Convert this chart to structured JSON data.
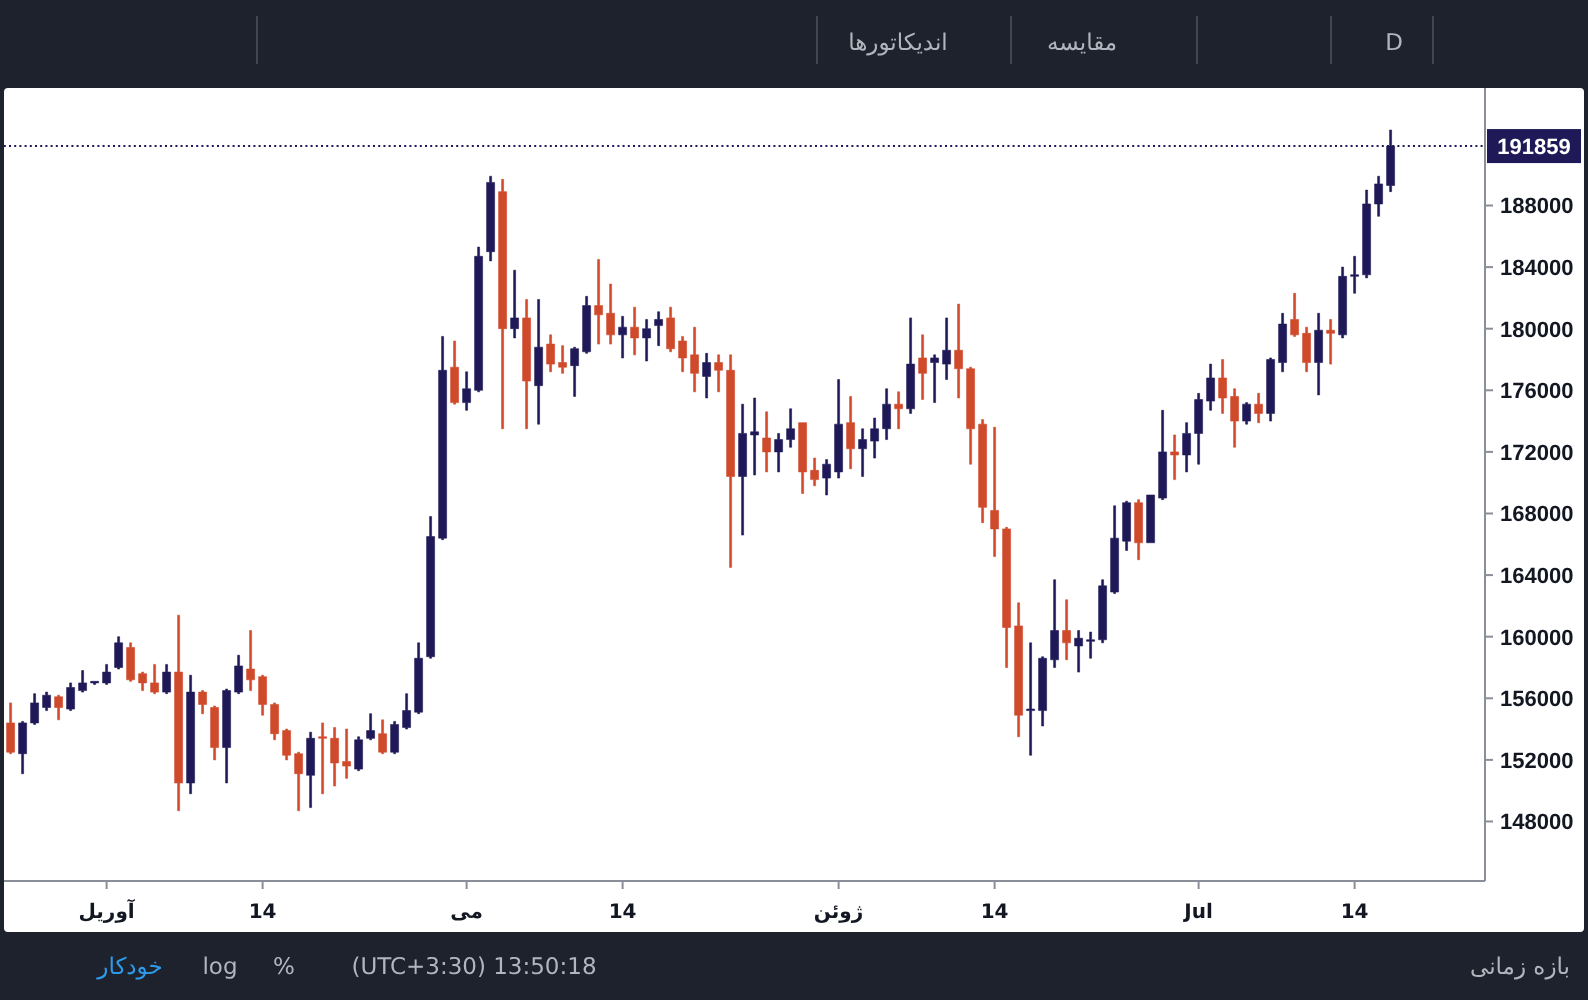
{
  "chart_data": {
    "type": "candlestick",
    "x": [
      "--03-24",
      "--03-25",
      "--03-26",
      "--03-27",
      "--03-28",
      "--03-29",
      "--03-30",
      "--03-31",
      "--04-01",
      "--04-02",
      "--04-03",
      "--04-04",
      "--04-05",
      "--04-06",
      "--04-07",
      "--04-08",
      "--04-09",
      "--04-10",
      "--04-11",
      "--04-12",
      "--04-13",
      "--04-14",
      "--04-15",
      "--04-16",
      "--04-17",
      "--04-18",
      "--04-19",
      "--04-20",
      "--04-21",
      "--04-22",
      "--04-23",
      "--04-24",
      "--04-25",
      "--04-26",
      "--04-27",
      "--04-28",
      "--04-29",
      "--04-30",
      "--05-01",
      "--05-02",
      "--05-03",
      "--05-04",
      "--05-05",
      "--05-06",
      "--05-07",
      "--05-08",
      "--05-09",
      "--05-10",
      "--05-11",
      "--05-12",
      "--05-13",
      "--05-14",
      "--05-15",
      "--05-16",
      "--05-17",
      "--05-18",
      "--05-19",
      "--05-20",
      "--05-21",
      "--05-22",
      "--05-23",
      "--05-24",
      "--05-25",
      "--05-26",
      "--05-27",
      "--05-28",
      "--05-29",
      "--05-30",
      "--05-31",
      "--06-01",
      "--06-02",
      "--06-03",
      "--06-04",
      "--06-05",
      "--06-06",
      "--06-07",
      "--06-08",
      "--06-09",
      "--06-10",
      "--06-11",
      "--06-12",
      "--06-13",
      "--06-14",
      "--06-15",
      "--06-16",
      "--06-17",
      "--06-18",
      "--06-19",
      "--06-20",
      "--06-21",
      "--06-22",
      "--06-23",
      "--06-24",
      "--06-25",
      "--06-26",
      "--06-27",
      "--06-28",
      "--06-29",
      "--06-30",
      "--07-01",
      "--07-02",
      "--07-03",
      "--07-04",
      "--07-05",
      "--07-06",
      "--07-07",
      "--07-08",
      "--07-09",
      "--07-10",
      "--07-11",
      "--07-12",
      "--07-13",
      "--07-14",
      "--07-15",
      "--07-16",
      "--07-17"
    ],
    "ohlc": [
      [
        154400,
        155700,
        152400,
        152500
      ],
      [
        152400,
        154500,
        151100,
        154400
      ],
      [
        154400,
        156300,
        154300,
        155700
      ],
      [
        155400,
        156400,
        155200,
        156200
      ],
      [
        156100,
        156200,
        154600,
        155400
      ],
      [
        155300,
        157000,
        155200,
        156700
      ],
      [
        156500,
        157800,
        156400,
        157000
      ],
      [
        157000,
        157100,
        156900,
        157100
      ],
      [
        157000,
        158200,
        156900,
        157700
      ],
      [
        158000,
        160000,
        157900,
        159600
      ],
      [
        159300,
        159600,
        157100,
        157200
      ],
      [
        157600,
        157700,
        156500,
        157000
      ],
      [
        157000,
        158200,
        156300,
        156400
      ],
      [
        156400,
        158200,
        156300,
        157700
      ],
      [
        157700,
        161400,
        148700,
        150500
      ],
      [
        150500,
        157500,
        149800,
        156400
      ],
      [
        156400,
        156500,
        155000,
        155600
      ],
      [
        155400,
        155500,
        152000,
        152800
      ],
      [
        152800,
        156600,
        150500,
        156500
      ],
      [
        156400,
        158800,
        156300,
        158100
      ],
      [
        157900,
        160400,
        156500,
        157200
      ],
      [
        157400,
        157500,
        154900,
        155600
      ],
      [
        155600,
        155700,
        153300,
        153700
      ],
      [
        153900,
        154000,
        152000,
        152300
      ],
      [
        152400,
        152500,
        148700,
        151100
      ],
      [
        151000,
        153800,
        148900,
        153400
      ],
      [
        153500,
        154400,
        149800,
        153400
      ],
      [
        153400,
        154100,
        150300,
        151800
      ],
      [
        151900,
        154000,
        150800,
        151600
      ],
      [
        151400,
        153500,
        151300,
        153300
      ],
      [
        153400,
        155000,
        153300,
        153900
      ],
      [
        153700,
        154600,
        152400,
        152500
      ],
      [
        152500,
        154500,
        152400,
        154300
      ],
      [
        154100,
        156300,
        154000,
        155200
      ],
      [
        155100,
        159600,
        155000,
        158600
      ],
      [
        158700,
        167800,
        158600,
        166500
      ],
      [
        166400,
        179500,
        166300,
        177300
      ],
      [
        177500,
        179200,
        175100,
        175200
      ],
      [
        175200,
        177200,
        174700,
        176100
      ],
      [
        176000,
        185300,
        175900,
        184700
      ],
      [
        185000,
        189900,
        184400,
        189500
      ],
      [
        188900,
        189700,
        173500,
        180000
      ],
      [
        180000,
        183800,
        179400,
        180700
      ],
      [
        180700,
        181900,
        173500,
        176600
      ],
      [
        176300,
        181900,
        173800,
        178800
      ],
      [
        179000,
        179600,
        177200,
        177700
      ],
      [
        177800,
        178900,
        177100,
        177500
      ],
      [
        177600,
        178800,
        175600,
        178700
      ],
      [
        178500,
        182100,
        178400,
        181500
      ],
      [
        181500,
        184500,
        179000,
        180900
      ],
      [
        181000,
        182900,
        179000,
        179600
      ],
      [
        179600,
        180800,
        178100,
        180100
      ],
      [
        180100,
        181400,
        178300,
        179400
      ],
      [
        179400,
        180600,
        177900,
        180000
      ],
      [
        180200,
        181100,
        178900,
        180600
      ],
      [
        180700,
        181400,
        178500,
        178700
      ],
      [
        179200,
        179500,
        177200,
        178100
      ],
      [
        178300,
        180100,
        175900,
        177100
      ],
      [
        176900,
        178400,
        175500,
        177800
      ],
      [
        177800,
        178300,
        175900,
        177300
      ],
      [
        177300,
        178300,
        164500,
        170400
      ],
      [
        170400,
        175100,
        166600,
        173200
      ],
      [
        173100,
        175500,
        170500,
        173300
      ],
      [
        172900,
        174600,
        170700,
        172000
      ],
      [
        172000,
        173200,
        170700,
        172800
      ],
      [
        172800,
        174800,
        172300,
        173500
      ],
      [
        173900,
        173900,
        169300,
        170700
      ],
      [
        170800,
        171600,
        169800,
        170200
      ],
      [
        170300,
        171500,
        169200,
        171200
      ],
      [
        170700,
        176700,
        170300,
        173800
      ],
      [
        173900,
        175600,
        170900,
        172200
      ],
      [
        172200,
        173500,
        170400,
        172800
      ],
      [
        172700,
        174200,
        171600,
        173500
      ],
      [
        173500,
        176100,
        172800,
        175100
      ],
      [
        175100,
        175900,
        173500,
        174800
      ],
      [
        174800,
        180700,
        174500,
        177700
      ],
      [
        178100,
        179600,
        175400,
        177100
      ],
      [
        177800,
        178300,
        175200,
        178100
      ],
      [
        177700,
        180700,
        176700,
        178600
      ],
      [
        178600,
        181600,
        175500,
        177400
      ],
      [
        177400,
        177500,
        171200,
        173500
      ],
      [
        173800,
        174100,
        167400,
        168400
      ],
      [
        168200,
        173600,
        165200,
        167000
      ],
      [
        167000,
        167100,
        158000,
        160600
      ],
      [
        160700,
        162200,
        153500,
        154900
      ],
      [
        155200,
        159600,
        152300,
        155300
      ],
      [
        155200,
        158700,
        154200,
        158600
      ],
      [
        158500,
        163700,
        158000,
        160400
      ],
      [
        160400,
        162400,
        158500,
        159600
      ],
      [
        159400,
        160400,
        157700,
        159900
      ],
      [
        159700,
        160300,
        158600,
        159800
      ],
      [
        159800,
        163700,
        159600,
        163300
      ],
      [
        162900,
        168500,
        162800,
        166400
      ],
      [
        166200,
        168800,
        165600,
        168700
      ],
      [
        168700,
        168900,
        165000,
        166100
      ],
      [
        166100,
        169200,
        166100,
        169200
      ],
      [
        169000,
        174700,
        168900,
        172000
      ],
      [
        172000,
        173100,
        170200,
        171800
      ],
      [
        171800,
        173900,
        170700,
        173200
      ],
      [
        173200,
        175800,
        171200,
        175400
      ],
      [
        175300,
        177700,
        174700,
        176800
      ],
      [
        176800,
        178000,
        174500,
        175500
      ],
      [
        175600,
        176100,
        172300,
        174000
      ],
      [
        174000,
        175200,
        173800,
        175100
      ],
      [
        175100,
        175800,
        173900,
        174500
      ],
      [
        174500,
        178100,
        174000,
        178000
      ],
      [
        177800,
        181000,
        177200,
        180300
      ],
      [
        180600,
        182300,
        179500,
        179600
      ],
      [
        179700,
        180100,
        177200,
        177800
      ],
      [
        177800,
        181000,
        175700,
        179900
      ],
      [
        179900,
        180600,
        177700,
        179700
      ],
      [
        179600,
        184000,
        179400,
        183400
      ],
      [
        183400,
        184700,
        182300,
        183500
      ],
      [
        183500,
        189000,
        183300,
        188100
      ],
      [
        188100,
        189900,
        187300,
        189400
      ],
      [
        189300,
        192900,
        188900,
        191859
      ]
    ],
    "colors": [
      "#cf4a2b",
      "#1f1a57",
      "#1f1a57",
      "#1f1a57",
      "#cf4a2b",
      "#1f1a57",
      "#1f1a57",
      "#1f1a57",
      "#1f1a57",
      "#1f1a57",
      "#cf4a2b",
      "#cf4a2b",
      "#cf4a2b",
      "#1f1a57",
      "#cf4a2b",
      "#1f1a57",
      "#cf4a2b",
      "#cf4a2b",
      "#1f1a57",
      "#1f1a57",
      "#cf4a2b",
      "#cf4a2b",
      "#cf4a2b",
      "#cf4a2b",
      "#cf4a2b",
      "#1f1a57",
      "#cf4a2b",
      "#cf4a2b",
      "#cf4a2b",
      "#1f1a57",
      "#1f1a57",
      "#cf4a2b",
      "#1f1a57",
      "#1f1a57",
      "#1f1a57",
      "#1f1a57",
      "#1f1a57",
      "#cf4a2b",
      "#1f1a57",
      "#1f1a57",
      "#1f1a57",
      "#cf4a2b",
      "#1f1a57",
      "#cf4a2b",
      "#1f1a57",
      "#cf4a2b",
      "#cf4a2b",
      "#1f1a57",
      "#1f1a57",
      "#cf4a2b",
      "#cf4a2b",
      "#1f1a57",
      "#cf4a2b",
      "#1f1a57",
      "#1f1a57",
      "#cf4a2b",
      "#cf4a2b",
      "#cf4a2b",
      "#1f1a57",
      "#cf4a2b",
      "#cf4a2b",
      "#1f1a57",
      "#1f1a57",
      "#cf4a2b",
      "#1f1a57",
      "#1f1a57",
      "#cf4a2b",
      "#cf4a2b",
      "#1f1a57",
      "#1f1a57",
      "#cf4a2b",
      "#1f1a57",
      "#1f1a57",
      "#1f1a57",
      "#cf4a2b",
      "#1f1a57",
      "#cf4a2b",
      "#1f1a57",
      "#1f1a57",
      "#cf4a2b",
      "#cf4a2b",
      "#cf4a2b",
      "#cf4a2b",
      "#cf4a2b",
      "#cf4a2b",
      "#1f1a57",
      "#1f1a57",
      "#1f1a57",
      "#cf4a2b",
      "#1f1a57",
      "#1f1a57",
      "#1f1a57",
      "#1f1a57",
      "#1f1a57",
      "#cf4a2b",
      "#1f1a57",
      "#1f1a57",
      "#cf4a2b",
      "#1f1a57",
      "#1f1a57",
      "#1f1a57",
      "#cf4a2b",
      "#cf4a2b",
      "#1f1a57",
      "#cf4a2b",
      "#1f1a57",
      "#1f1a57",
      "#cf4a2b",
      "#cf4a2b",
      "#1f1a57",
      "#cf4a2b",
      "#1f1a57",
      "#1f1a57",
      "#1f1a57",
      "#1f1a57",
      "#1f1a57"
    ],
    "xlim": [
      "--03-23",
      "--07-25"
    ],
    "xticks": [
      {
        "value": "--04-01",
        "label": "آوریل"
      },
      {
        "value": "--04-14",
        "label": "14"
      },
      {
        "value": "--05-01",
        "label": "می"
      },
      {
        "value": "--05-14",
        "label": "14"
      },
      {
        "value": "--06-01",
        "label": "ژوئن"
      },
      {
        "value": "--06-14",
        "label": "14"
      },
      {
        "value": "--07-01",
        "label": "Jul"
      },
      {
        "value": "--07-14",
        "label": "14"
      }
    ],
    "ylim": [
      144200,
      195500
    ],
    "yticks": [
      148000,
      152000,
      156000,
      160000,
      164000,
      168000,
      172000,
      176000,
      180000,
      184000,
      188000
    ],
    "ref_lines": [
      {
        "axis": "y",
        "value": 191859,
        "label": "191859",
        "color": "#1f1a57",
        "line_style": "dotted"
      }
    ],
    "annotations": [
      "اندیکاتورها",
      "مقایسه",
      "D",
      "خودکار",
      "log",
      "%",
      "(UTC+3:30) 13:50:18",
      "بازه زمانی"
    ]
  }
}
